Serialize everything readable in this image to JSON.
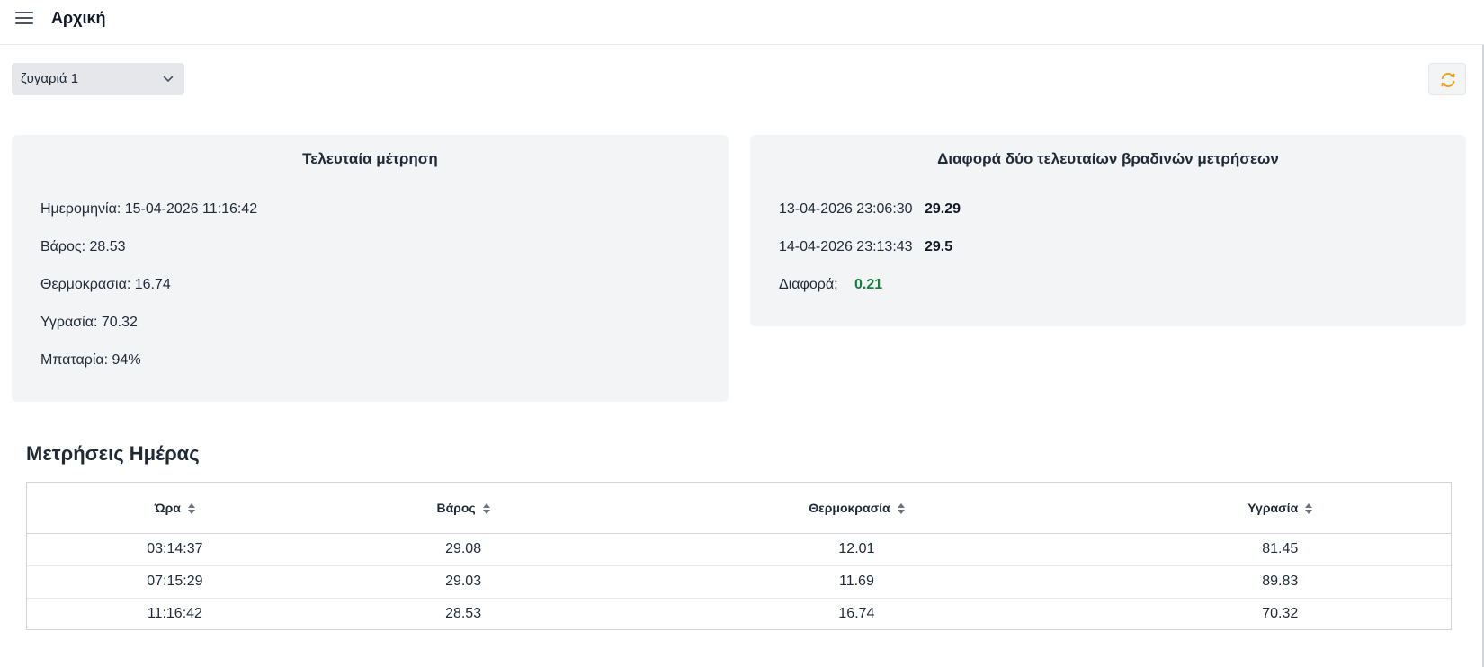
{
  "header": {
    "title": "Αρχική",
    "menu_icon": "menu-icon"
  },
  "selector": {
    "value": "ζυγαριά 1",
    "icon": "chevron-down-icon"
  },
  "refresh": {
    "icon": "refresh-icon",
    "color": "#f59e0b"
  },
  "last_measurement": {
    "title": "Τελευταία μέτρηση",
    "date": "Ημερομηνία: 15-04-2026 11:16:42",
    "weight": "Βάρος: 28.53",
    "temperature": "Θερμοκρασια: 16.74",
    "humidity": "Υγρασία: 70.32",
    "battery": "Μπαταρία: 94%"
  },
  "difference": {
    "title": "Διαφορά δύο τελευταίων βραδινών μετρήσεων",
    "first": {
      "datetime": "13-04-2026 23:06:30",
      "value": "29.29"
    },
    "second": {
      "datetime": "14-04-2026 23:13:43",
      "value": "29.5"
    },
    "diff_label": "Διαφορά:",
    "diff_value": "0.21",
    "diff_color": "#15803d"
  },
  "day_measurements": {
    "title": "Μετρήσεις Ημέρας",
    "columns": [
      "Ώρα",
      "Βάρος",
      "Θερμοκρασία",
      "Υγρασία"
    ],
    "rows": [
      [
        "03:14:37",
        "29.08",
        "12.01",
        "81.45"
      ],
      [
        "07:15:29",
        "29.03",
        "11.69",
        "89.83"
      ],
      [
        "11:16:42",
        "28.53",
        "16.74",
        "70.32"
      ]
    ]
  }
}
